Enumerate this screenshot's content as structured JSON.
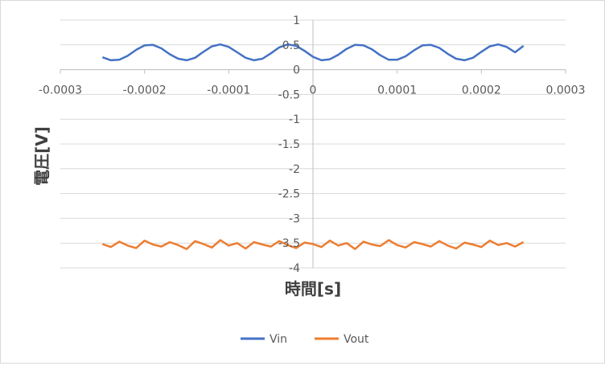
{
  "chart_data": {
    "type": "line",
    "title": "",
    "xlabel": "時間[s]",
    "ylabel": "電圧[V]",
    "xlim": [
      -0.0003,
      0.0003
    ],
    "ylim": [
      -4,
      1
    ],
    "x_ticks": [
      -0.0003,
      -0.0002,
      -0.0001,
      0,
      0.0001,
      0.0002,
      0.0003
    ],
    "x_tick_labels": [
      "-0.0003",
      "-0.0002",
      "-0.0001",
      "0",
      "0.0001",
      "0.0002",
      "0.0003"
    ],
    "y_ticks": [
      1,
      0.5,
      0,
      -0.5,
      -1,
      -1.5,
      -2,
      -2.5,
      -3,
      -3.5,
      -4
    ],
    "y_tick_labels": [
      "1",
      "0.5",
      "0",
      "-0.5",
      "-1",
      "-1.5",
      "-2",
      "-2.5",
      "-3",
      "-3.5",
      "-4"
    ],
    "grid": "horizontal",
    "legend": "bottom",
    "series": [
      {
        "name": "Vin",
        "color": "#4472C4",
        "x": [
          -0.00025,
          -0.00024,
          -0.00023,
          -0.00022,
          -0.00021,
          -0.0002,
          -0.00019,
          -0.00018,
          -0.00017,
          -0.00016,
          -0.00015,
          -0.00014,
          -0.00013,
          -0.00012,
          -0.00011,
          -0.0001,
          -9e-05,
          -8e-05,
          -7e-05,
          -6e-05,
          -5e-05,
          -4e-05,
          -3e-05,
          -2e-05,
          -1e-05,
          0,
          1e-05,
          2e-05,
          3e-05,
          4e-05,
          5e-05,
          6e-05,
          7e-05,
          8e-05,
          9e-05,
          0.0001,
          0.00011,
          0.00012,
          0.00013,
          0.00014,
          0.00015,
          0.00016,
          0.00017,
          0.00018,
          0.00019,
          0.0002,
          0.00021,
          0.00022,
          0.00023,
          0.00024,
          0.00025
        ],
        "y": [
          0.25,
          0.19,
          0.2,
          0.28,
          0.4,
          0.49,
          0.5,
          0.43,
          0.31,
          0.22,
          0.19,
          0.24,
          0.36,
          0.47,
          0.51,
          0.46,
          0.35,
          0.24,
          0.19,
          0.22,
          0.33,
          0.45,
          0.51,
          0.48,
          0.38,
          0.26,
          0.19,
          0.21,
          0.3,
          0.42,
          0.5,
          0.49,
          0.41,
          0.29,
          0.2,
          0.2,
          0.27,
          0.39,
          0.49,
          0.5,
          0.44,
          0.32,
          0.22,
          0.19,
          0.24,
          0.36,
          0.47,
          0.51,
          0.46,
          0.35,
          0.48
        ]
      },
      {
        "name": "Vout",
        "color": "#ED7D31",
        "x": [
          -0.00025,
          -0.00024,
          -0.00023,
          -0.00022,
          -0.00021,
          -0.0002,
          -0.00019,
          -0.00018,
          -0.00017,
          -0.00016,
          -0.00015,
          -0.00014,
          -0.00013,
          -0.00012,
          -0.00011,
          -0.0001,
          -9e-05,
          -8e-05,
          -7e-05,
          -6e-05,
          -5e-05,
          -4e-05,
          -3e-05,
          -2e-05,
          -1e-05,
          0,
          1e-05,
          2e-05,
          3e-05,
          4e-05,
          5e-05,
          6e-05,
          7e-05,
          8e-05,
          9e-05,
          0.0001,
          0.00011,
          0.00012,
          0.00013,
          0.00014,
          0.00015,
          0.00016,
          0.00017,
          0.00018,
          0.00019,
          0.0002,
          0.00021,
          0.00022,
          0.00023,
          0.00024,
          0.00025
        ],
        "y": [
          -3.52,
          -3.58,
          -3.47,
          -3.55,
          -3.6,
          -3.45,
          -3.53,
          -3.57,
          -3.48,
          -3.54,
          -3.62,
          -3.46,
          -3.52,
          -3.59,
          -3.44,
          -3.55,
          -3.5,
          -3.61,
          -3.48,
          -3.53,
          -3.57,
          -3.46,
          -3.54,
          -3.6,
          -3.49,
          -3.52,
          -3.58,
          -3.45,
          -3.55,
          -3.5,
          -3.62,
          -3.47,
          -3.53,
          -3.56,
          -3.44,
          -3.54,
          -3.59,
          -3.48,
          -3.52,
          -3.57,
          -3.46,
          -3.55,
          -3.61,
          -3.49,
          -3.53,
          -3.58,
          -3.45,
          -3.54,
          -3.5,
          -3.57,
          -3.48
        ]
      }
    ]
  }
}
